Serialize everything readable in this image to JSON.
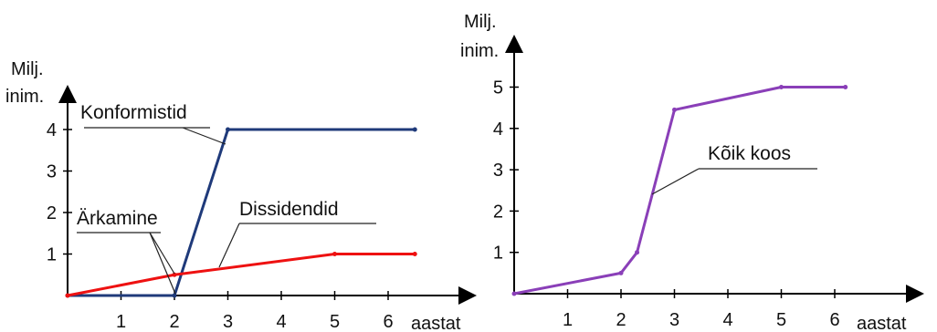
{
  "chart_data": [
    {
      "type": "line",
      "xlabel": "aastat",
      "ylabel_line1": "Milj.",
      "ylabel_line2": "inim.",
      "x_ticks": [
        "1",
        "2",
        "3",
        "4",
        "5",
        "6"
      ],
      "y_ticks": [
        "1",
        "2",
        "3",
        "4"
      ],
      "xlim": [
        0,
        6.5
      ],
      "ylim": [
        0,
        4
      ],
      "series": [
        {
          "name": "Konformistid",
          "color": "#1f3a7a",
          "x": [
            0,
            2,
            3,
            6.5
          ],
          "y": [
            0,
            0,
            4,
            4
          ]
        },
        {
          "name": "Dissidendid",
          "color": "#ee1111",
          "x": [
            0,
            2,
            5,
            6.5
          ],
          "y": [
            0,
            0.5,
            1,
            1
          ]
        }
      ],
      "annotations": [
        {
          "text": "Konformistid"
        },
        {
          "text": "Dissidendid"
        },
        {
          "text": "Ärkamine"
        }
      ]
    },
    {
      "type": "line",
      "xlabel": "aastat",
      "ylabel_line1": "Milj.",
      "ylabel_line2": "inim.",
      "x_ticks": [
        "1",
        "2",
        "3",
        "4",
        "5",
        "6"
      ],
      "y_ticks": [
        "1",
        "2",
        "3",
        "4",
        "5"
      ],
      "xlim": [
        0,
        6.2
      ],
      "ylim": [
        0,
        5
      ],
      "series": [
        {
          "name": "Kõik koos",
          "color": "#8a3fb8",
          "x": [
            0,
            2,
            2.3,
            3,
            5,
            6.2
          ],
          "y": [
            0,
            0.5,
            1,
            4.45,
            5,
            5
          ]
        }
      ],
      "annotations": [
        {
          "text": "Kõik koos"
        }
      ]
    }
  ]
}
